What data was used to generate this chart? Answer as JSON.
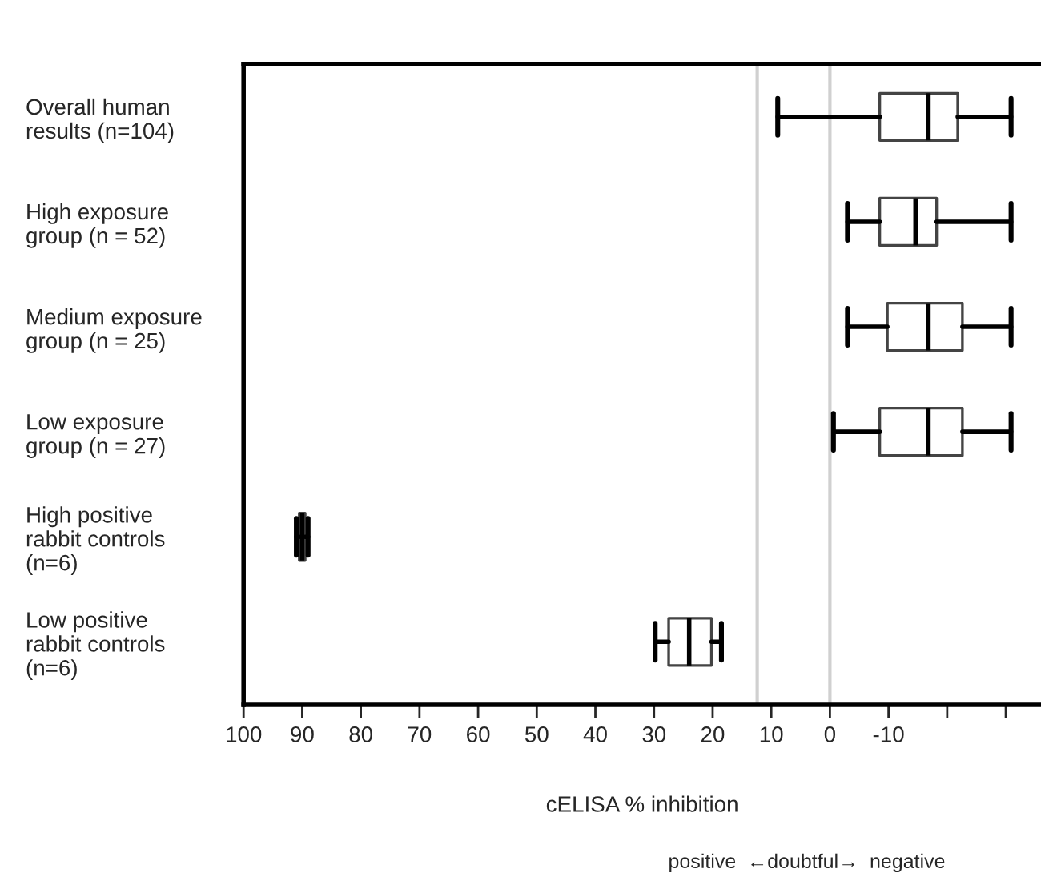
{
  "chart_data": {
    "type": "box",
    "orientation": "horizontal",
    "xlabel": "cELISA % inhibition",
    "categories": [
      "Overall human\nresults (n=104)",
      "High exposure\ngroup (n = 52)",
      "Medium exposure\ngroup (n = 25)",
      "Low exposure\ngroup (n = 27)",
      "High positive\nrabbit controls\n(n=6)",
      "Low positive\nrabbit controls\n(n=6)"
    ],
    "boxes": [
      {
        "low": 8.9,
        "q1": -8.5,
        "median": -16.8,
        "q3": -21.8,
        "high": -30.9
      },
      {
        "low": -3.0,
        "q1": -8.5,
        "median": -14.6,
        "q3": -18.2,
        "high": -30.9
      },
      {
        "low": -3.0,
        "q1": -9.8,
        "median": -16.8,
        "q3": -22.6,
        "high": -30.9
      },
      {
        "low": -0.6,
        "q1": -8.5,
        "median": -16.8,
        "q3": -22.6,
        "high": -30.9
      },
      {
        "low": 91,
        "q1": 90.5,
        "median": 90,
        "q3": 89.5,
        "high": 89
      },
      {
        "low": 29.8,
        "q1": 27.5,
        "median": 24,
        "q3": 20.2,
        "high": 18.5
      }
    ],
    "xlim": [
      100,
      -36
    ],
    "xticks": [
      100,
      90,
      80,
      70,
      60,
      50,
      40,
      30,
      20,
      10,
      0,
      -10,
      {
        "value": -20,
        "label": null
      },
      {
        "value": -30,
        "label": null
      }
    ],
    "ref_lines": [
      {
        "axis": "x",
        "value": 12.4,
        "color": "#d0d0d0"
      },
      {
        "axis": "x",
        "value": 0,
        "color": "#d0d0d0"
      }
    ],
    "annotations": [
      "positive  ←doubtful→  negative"
    ],
    "grid": false
  }
}
